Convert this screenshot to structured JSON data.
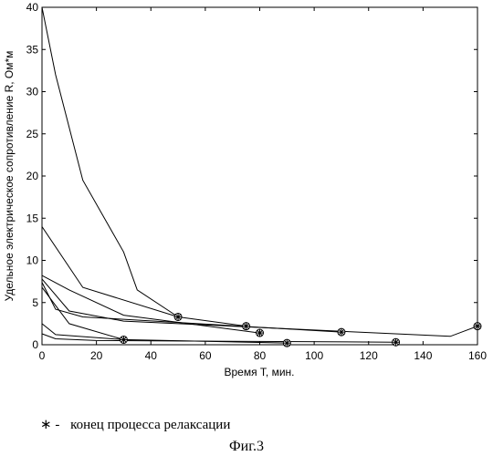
{
  "chart_data": {
    "type": "line",
    "title": "",
    "xlabel": "Время T, мин.",
    "ylabel": "Удельное электрическое сопротивление R, Ом*м",
    "xlim": [
      0,
      160
    ],
    "ylim": [
      0,
      40
    ],
    "xticks": [
      "0",
      "20",
      "40",
      "60",
      "80",
      "100",
      "120",
      "140",
      "160"
    ],
    "yticks": [
      "0",
      "5",
      "10",
      "15",
      "20",
      "25",
      "30",
      "35",
      "40"
    ],
    "grid": false,
    "series": [
      {
        "x": [
          0,
          5,
          15,
          30,
          35,
          50
        ],
        "y": [
          40,
          32,
          19.5,
          11,
          6.5,
          3.3
        ]
      },
      {
        "x": [
          0,
          15,
          50,
          75
        ],
        "y": [
          14,
          6.8,
          3.3,
          2.2
        ]
      },
      {
        "x": [
          0,
          10,
          30,
          80
        ],
        "y": [
          8.2,
          6.5,
          3.5,
          1.4
        ]
      },
      {
        "x": [
          0,
          10,
          30,
          150,
          160
        ],
        "y": [
          7.8,
          4,
          2.8,
          1,
          2.2
        ]
      },
      {
        "x": [
          0,
          5,
          15,
          110
        ],
        "y": [
          7.4,
          4.2,
          3.3,
          1.5
        ]
      },
      {
        "x": [
          0,
          10,
          30
        ],
        "y": [
          6.8,
          2.5,
          0.6
        ]
      },
      {
        "x": [
          0,
          5,
          30,
          90
        ],
        "y": [
          2.5,
          1.2,
          0.6,
          0.2
        ]
      },
      {
        "x": [
          0,
          5,
          20,
          130
        ],
        "y": [
          1.3,
          0.7,
          0.5,
          0.3
        ]
      }
    ],
    "markers": {
      "symbol": "*",
      "points": [
        {
          "x": 50,
          "y": 3.3
        },
        {
          "x": 75,
          "y": 2.2
        },
        {
          "x": 80,
          "y": 1.4
        },
        {
          "x": 110,
          "y": 1.5
        },
        {
          "x": 160,
          "y": 2.2
        },
        {
          "x": 30,
          "y": 0.6
        },
        {
          "x": 90,
          "y": 0.2
        },
        {
          "x": 130,
          "y": 0.3
        }
      ]
    }
  },
  "legend": {
    "marker": "∗ -",
    "text": "конец процесса релаксации"
  },
  "caption": "Фиг.3"
}
